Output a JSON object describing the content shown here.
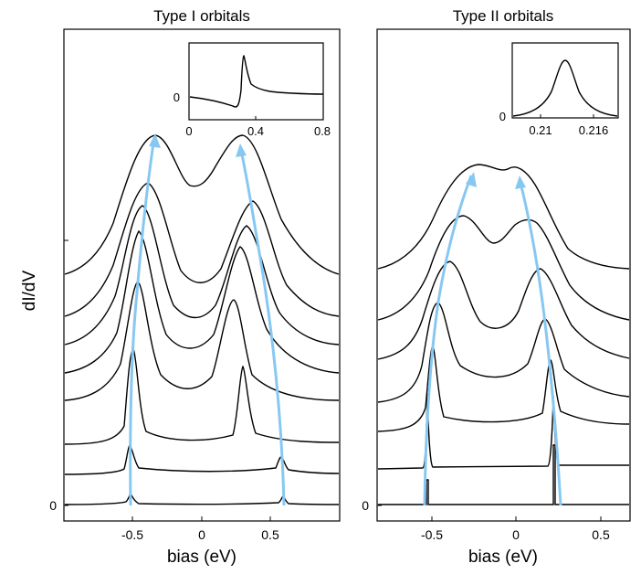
{
  "ylabel": "dI/dV",
  "chart_data": [
    {
      "type": "line",
      "title": "Type I orbitals",
      "xlabel": "bias (eV)",
      "xlim": [
        -1.0,
        1.0
      ],
      "xticks": [
        "-0.5",
        "0",
        "0.5"
      ],
      "y_zero_label": "0",
      "stacked_offset_curves": 8,
      "series": [
        {
          "peaks": [
            -0.52,
            0.31
          ],
          "width": 0.012,
          "height": 0.3
        },
        {
          "peaks": [
            -0.52,
            0.3
          ],
          "width": 0.02,
          "height": 0.5
        },
        {
          "peaks": [
            -0.5,
            0.28
          ],
          "width": 0.04,
          "height": 1.0
        },
        {
          "peaks": [
            -0.46,
            0.24
          ],
          "width": 0.07,
          "height": 1.15
        },
        {
          "peaks": [
            -0.43,
            0.2
          ],
          "width": 0.1,
          "height": 1.3
        },
        {
          "peaks": [
            -0.4,
            0.17
          ],
          "width": 0.13,
          "height": 1.4
        },
        {
          "peaks": [
            -0.37,
            0.14
          ],
          "width": 0.16,
          "height": 1.5
        },
        {
          "peaks": [
            -0.34,
            0.11
          ],
          "width": 0.18,
          "height": 1.55
        }
      ],
      "inset": {
        "xlim": [
          0,
          0.8
        ],
        "xticks": [
          "0",
          "0.4",
          "0.8"
        ],
        "y_zero_label": "0",
        "feature": "Fano-like resonance near 0.31 eV"
      }
    },
    {
      "type": "line",
      "title": "Type II orbitals",
      "xlabel": "bias (eV)",
      "xlim": [
        -0.75,
        0.75
      ],
      "xticks": [
        "-0.5",
        "0",
        "0.5"
      ],
      "y_zero_label": "0",
      "stacked_offset_curves": 7,
      "series": [
        {
          "peaks": [
            -0.44,
            0.21
          ],
          "width": 0.0015,
          "height": 0.45
        },
        {
          "peaks": [
            -0.44,
            0.21
          ],
          "width": 0.005,
          "height": 1.2
        },
        {
          "peaks": [
            -0.42,
            0.19
          ],
          "width": 0.025,
          "height": 1.3
        },
        {
          "peaks": [
            -0.38,
            0.15
          ],
          "width": 0.06,
          "height": 1.35
        },
        {
          "peaks": [
            -0.33,
            0.1
          ],
          "width": 0.1,
          "height": 1.35
        },
        {
          "peaks": [
            -0.28,
            0.06
          ],
          "width": 0.13,
          "height": 1.3
        },
        {
          "peaks": [
            -0.23,
            0.0
          ],
          "width": 0.16,
          "height": 1.3
        }
      ],
      "inset": {
        "xlim": [
          0.208,
          0.218
        ],
        "xticks": [
          "0.21",
          "0.216"
        ],
        "y_zero_label": "0",
        "feature": "Lorentzian peak near 0.213 eV"
      }
    }
  ]
}
